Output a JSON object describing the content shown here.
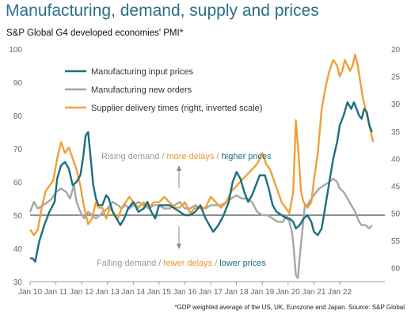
{
  "title": "Manufacturing, demand, supply and prices",
  "subtitle": "S&P Global G4 developed economies' PMI*",
  "footnote": "*GDP weighted average of the US, UK, Eurozone and Japan.  Source: S&P Global",
  "colors": {
    "input_prices": "#1b6f7f",
    "new_orders": "#a6a6a6",
    "delivery_times": "#f0a037",
    "higher": "#1b6f7f",
    "delays": "#e8962e"
  },
  "chart_data": {
    "type": "line",
    "x_ticks": [
      "Jan 10",
      "Jan 11",
      "Jan 12",
      "Jan 13",
      "Jan 14",
      "Jan 15",
      "Jan 16",
      "Jan 17",
      "Jan 18",
      "Jan 19",
      "Jan 20",
      "Jan 21",
      "Jan 22"
    ],
    "x_range": [
      2010.0,
      2023.75
    ],
    "y_left_range": [
      30,
      100
    ],
    "y_left_ticks": [
      30,
      40,
      50,
      60,
      70,
      80,
      90,
      100
    ],
    "y_right_range_inverted": [
      20,
      62.5
    ],
    "y_right_ticks": [
      20,
      25,
      30,
      35,
      40,
      45,
      50,
      55,
      60
    ],
    "reference_line_left": 50,
    "legend_position": "top-left",
    "series": [
      {
        "name": "Manufacturing input prices",
        "axis": "left",
        "points": [
          [
            2010.0,
            37
          ],
          [
            2010.1,
            37
          ],
          [
            2010.2,
            36
          ],
          [
            2010.35,
            42
          ],
          [
            2010.55,
            47
          ],
          [
            2010.75,
            51
          ],
          [
            2010.95,
            54
          ],
          [
            2011.05,
            61
          ],
          [
            2011.2,
            65
          ],
          [
            2011.35,
            66
          ],
          [
            2011.5,
            64
          ],
          [
            2011.65,
            59
          ],
          [
            2011.8,
            60
          ],
          [
            2011.95,
            62
          ],
          [
            2012.05,
            67
          ],
          [
            2012.15,
            74
          ],
          [
            2012.25,
            75
          ],
          [
            2012.35,
            67
          ],
          [
            2012.45,
            59
          ],
          [
            2012.55,
            55
          ],
          [
            2012.65,
            53
          ],
          [
            2012.8,
            53
          ],
          [
            2012.95,
            56
          ],
          [
            2013.05,
            55
          ],
          [
            2013.2,
            51
          ],
          [
            2013.35,
            49
          ],
          [
            2013.5,
            47
          ],
          [
            2013.65,
            49
          ],
          [
            2013.8,
            52
          ],
          [
            2014.0,
            54
          ],
          [
            2014.2,
            51
          ],
          [
            2014.4,
            52
          ],
          [
            2014.55,
            54
          ],
          [
            2014.7,
            51
          ],
          [
            2014.85,
            49
          ],
          [
            2015.0,
            53
          ],
          [
            2015.2,
            53
          ],
          [
            2015.4,
            53
          ],
          [
            2015.6,
            52
          ],
          [
            2015.8,
            51
          ],
          [
            2016.0,
            50
          ],
          [
            2016.2,
            50
          ],
          [
            2016.4,
            51
          ],
          [
            2016.6,
            53
          ],
          [
            2016.8,
            49
          ],
          [
            2016.95,
            47
          ],
          [
            2017.1,
            45
          ],
          [
            2017.3,
            47
          ],
          [
            2017.5,
            50
          ],
          [
            2017.7,
            54
          ],
          [
            2017.85,
            60
          ],
          [
            2018.0,
            63
          ],
          [
            2018.15,
            61
          ],
          [
            2018.3,
            57
          ],
          [
            2018.45,
            54
          ],
          [
            2018.6,
            56
          ],
          [
            2018.75,
            59
          ],
          [
            2018.9,
            62
          ],
          [
            2019.0,
            62
          ],
          [
            2019.1,
            62
          ],
          [
            2019.25,
            58
          ],
          [
            2019.4,
            53
          ],
          [
            2019.55,
            51
          ],
          [
            2019.75,
            50
          ],
          [
            2019.95,
            49
          ],
          [
            2020.05,
            49
          ],
          [
            2020.2,
            48
          ],
          [
            2020.3,
            46
          ],
          [
            2020.45,
            47
          ],
          [
            2020.6,
            49
          ],
          [
            2020.75,
            50
          ],
          [
            2020.9,
            48
          ],
          [
            2021.0,
            45
          ],
          [
            2021.15,
            44
          ],
          [
            2021.3,
            46
          ],
          [
            2021.45,
            53
          ],
          [
            2021.6,
            60
          ],
          [
            2021.75,
            67
          ],
          [
            2021.9,
            72
          ],
          [
            2022.0,
            77
          ],
          [
            2022.15,
            80
          ],
          [
            2022.3,
            84
          ],
          [
            2022.45,
            82
          ],
          [
            2022.55,
            84
          ],
          [
            2022.65,
            82
          ],
          [
            2022.75,
            80
          ],
          [
            2022.85,
            79
          ],
          [
            2022.95,
            82
          ],
          [
            2023.05,
            81
          ],
          [
            2023.15,
            77
          ],
          [
            2023.25,
            75
          ]
        ]
      },
      {
        "name": "Manufacturing new orders",
        "axis": "left",
        "points": [
          [
            2010.0,
            51
          ],
          [
            2010.15,
            54
          ],
          [
            2010.3,
            52
          ],
          [
            2010.5,
            53
          ],
          [
            2010.7,
            54
          ],
          [
            2010.85,
            55
          ],
          [
            2011.0,
            57
          ],
          [
            2011.2,
            58
          ],
          [
            2011.4,
            57
          ],
          [
            2011.55,
            55
          ],
          [
            2011.7,
            59
          ],
          [
            2011.8,
            54
          ],
          [
            2011.95,
            51
          ],
          [
            2012.1,
            49
          ],
          [
            2012.25,
            51
          ],
          [
            2012.4,
            50
          ],
          [
            2012.55,
            49
          ],
          [
            2012.7,
            50
          ],
          [
            2012.85,
            51
          ],
          [
            2013.0,
            52
          ],
          [
            2013.2,
            54
          ],
          [
            2013.4,
            53
          ],
          [
            2013.55,
            52
          ],
          [
            2013.7,
            53
          ],
          [
            2013.85,
            52
          ],
          [
            2014.0,
            53
          ],
          [
            2014.2,
            54
          ],
          [
            2014.4,
            53
          ],
          [
            2014.6,
            52
          ],
          [
            2014.8,
            53
          ],
          [
            2015.0,
            53
          ],
          [
            2015.2,
            52
          ],
          [
            2015.4,
            52
          ],
          [
            2015.6,
            53
          ],
          [
            2015.8,
            54
          ],
          [
            2016.0,
            52
          ],
          [
            2016.2,
            52
          ],
          [
            2016.4,
            53
          ],
          [
            2016.6,
            52
          ],
          [
            2016.8,
            52
          ],
          [
            2017.0,
            53
          ],
          [
            2017.2,
            53
          ],
          [
            2017.4,
            53
          ],
          [
            2017.6,
            54
          ],
          [
            2017.8,
            55
          ],
          [
            2018.0,
            56
          ],
          [
            2018.2,
            55
          ],
          [
            2018.4,
            55
          ],
          [
            2018.6,
            54
          ],
          [
            2018.8,
            51
          ],
          [
            2019.0,
            50
          ],
          [
            2019.2,
            50
          ],
          [
            2019.4,
            49
          ],
          [
            2019.6,
            48
          ],
          [
            2019.8,
            48
          ],
          [
            2019.95,
            50
          ],
          [
            2020.05,
            48
          ],
          [
            2020.15,
            45
          ],
          [
            2020.22,
            40
          ],
          [
            2020.3,
            32
          ],
          [
            2020.38,
            31
          ],
          [
            2020.47,
            39
          ],
          [
            2020.55,
            45
          ],
          [
            2020.65,
            53
          ],
          [
            2020.75,
            53
          ],
          [
            2020.9,
            55
          ],
          [
            2021.0,
            56
          ],
          [
            2021.2,
            58
          ],
          [
            2021.4,
            59
          ],
          [
            2021.6,
            60
          ],
          [
            2021.75,
            61
          ],
          [
            2021.9,
            60
          ],
          [
            2022.0,
            58
          ],
          [
            2022.15,
            57
          ],
          [
            2022.3,
            55
          ],
          [
            2022.45,
            53
          ],
          [
            2022.6,
            51
          ],
          [
            2022.75,
            48
          ],
          [
            2022.85,
            47
          ],
          [
            2023.0,
            47
          ],
          [
            2023.15,
            46
          ],
          [
            2023.25,
            47
          ]
        ]
      },
      {
        "name": "Supplier delivery times (right, inverted scale)",
        "axis": "right",
        "points": [
          [
            2010.0,
            53
          ],
          [
            2010.15,
            54
          ],
          [
            2010.3,
            53
          ],
          [
            2010.45,
            49
          ],
          [
            2010.6,
            46
          ],
          [
            2010.75,
            45
          ],
          [
            2010.9,
            44
          ],
          [
            2011.05,
            40
          ],
          [
            2011.2,
            37
          ],
          [
            2011.35,
            39
          ],
          [
            2011.5,
            38
          ],
          [
            2011.65,
            40
          ],
          [
            2011.8,
            42
          ],
          [
            2011.95,
            45
          ],
          [
            2012.1,
            49
          ],
          [
            2012.25,
            52
          ],
          [
            2012.4,
            51
          ],
          [
            2012.55,
            48
          ],
          [
            2012.65,
            49
          ],
          [
            2012.8,
            49
          ],
          [
            2012.95,
            51
          ],
          [
            2013.1,
            49
          ],
          [
            2013.25,
            50
          ],
          [
            2013.4,
            51
          ],
          [
            2013.55,
            49
          ],
          [
            2013.7,
            48
          ],
          [
            2013.85,
            47
          ],
          [
            2014.0,
            48
          ],
          [
            2014.2,
            49
          ],
          [
            2014.4,
            48
          ],
          [
            2014.6,
            49
          ],
          [
            2014.8,
            48
          ],
          [
            2015.0,
            48
          ],
          [
            2015.2,
            47
          ],
          [
            2015.4,
            48
          ],
          [
            2015.6,
            49
          ],
          [
            2015.8,
            49
          ],
          [
            2016.0,
            48
          ],
          [
            2016.2,
            50
          ],
          [
            2016.4,
            49
          ],
          [
            2016.6,
            49
          ],
          [
            2016.8,
            49
          ],
          [
            2017.0,
            47
          ],
          [
            2017.2,
            48
          ],
          [
            2017.4,
            49
          ],
          [
            2017.6,
            48
          ],
          [
            2017.8,
            46
          ],
          [
            2018.0,
            45
          ],
          [
            2018.2,
            44
          ],
          [
            2018.4,
            43
          ],
          [
            2018.6,
            42
          ],
          [
            2018.8,
            41
          ],
          [
            2019.0,
            39
          ],
          [
            2019.15,
            41
          ],
          [
            2019.3,
            42
          ],
          [
            2019.45,
            44
          ],
          [
            2019.6,
            46
          ],
          [
            2019.75,
            48
          ],
          [
            2019.9,
            49
          ],
          [
            2020.05,
            50
          ],
          [
            2020.2,
            46
          ],
          [
            2020.3,
            33
          ],
          [
            2020.4,
            39
          ],
          [
            2020.5,
            46
          ],
          [
            2020.6,
            48
          ],
          [
            2020.75,
            49
          ],
          [
            2020.9,
            48
          ],
          [
            2021.0,
            44
          ],
          [
            2021.15,
            39
          ],
          [
            2021.3,
            31
          ],
          [
            2021.45,
            27
          ],
          [
            2021.6,
            24
          ],
          [
            2021.75,
            22
          ],
          [
            2021.9,
            23
          ],
          [
            2022.0,
            25
          ],
          [
            2022.1,
            24
          ],
          [
            2022.2,
            22
          ],
          [
            2022.3,
            23
          ],
          [
            2022.4,
            24
          ],
          [
            2022.5,
            23
          ],
          [
            2022.6,
            21
          ],
          [
            2022.7,
            23
          ],
          [
            2022.8,
            26
          ],
          [
            2022.9,
            29
          ],
          [
            2023.0,
            31
          ],
          [
            2023.1,
            33
          ],
          [
            2023.2,
            35
          ],
          [
            2023.3,
            37
          ]
        ]
      }
    ],
    "annotations": {
      "top": [
        {
          "text": "Rising demand /",
          "color_key": "new_orders"
        },
        {
          "text": " more delays /",
          "color_key": "delays"
        },
        {
          "text": " higher prices",
          "color_key": "higher"
        }
      ],
      "bottom": [
        {
          "text": "Falling demand /",
          "color_key": "new_orders"
        },
        {
          "text": " fewer delays /",
          "color_key": "delays"
        },
        {
          "text": " lower prices",
          "color_key": "higher"
        }
      ]
    }
  }
}
